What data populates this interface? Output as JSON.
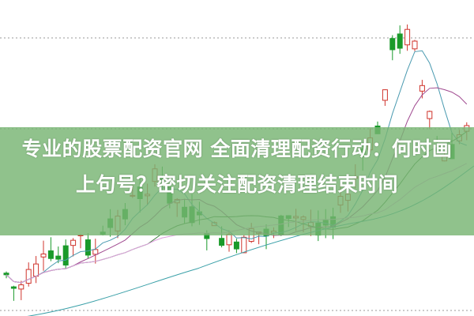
{
  "headline": {
    "line1": "专业的股票配资官网 全面清理配资行动：何时画",
    "line2": "上句号？密切关注配资清理结束时间"
  },
  "colors": {
    "banner": "#78b473",
    "up_candle": "#d0342c",
    "down_candle": "#1a9a2a",
    "ma_short": "#4a9ab0",
    "ma_mid": "#a04a90",
    "ma_long": "#3a7a3a",
    "ma_longest": "#e0a0e0",
    "baseline": "#3aa0a8"
  }
}
